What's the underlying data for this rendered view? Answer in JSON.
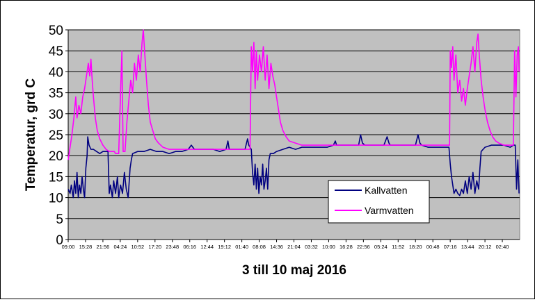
{
  "chart_data": {
    "type": "line",
    "title": "",
    "xlabel": "3 till 10 maj 2016",
    "ylabel": "Temperatur, grd C",
    "ylim": [
      0,
      50
    ],
    "yticks": [
      0,
      5,
      10,
      15,
      20,
      25,
      30,
      35,
      40,
      45,
      50
    ],
    "grid": true,
    "legend_position": "lower-right",
    "x_tick_labels": [
      "09:00",
      "15:28",
      "21:56",
      "04:24",
      "10:52",
      "17:20",
      "23:48",
      "06:16",
      "12:44",
      "19:12",
      "01:40",
      "08:08",
      "14:36",
      "21:04",
      "03:32",
      "10:00",
      "16:28",
      "22:56",
      "05:24",
      "11:52",
      "18:20",
      "00:48",
      "07:16",
      "13:44",
      "20:12",
      "02:40"
    ],
    "colors": {
      "plot_background": "#c0c0c0",
      "kallvatten": "#000080",
      "varmvatten": "#ff00ff"
    },
    "series": [
      {
        "name": "Kallvatten",
        "color": "#000080",
        "points": [
          [
            0,
            12
          ],
          [
            0.3,
            11
          ],
          [
            0.5,
            13
          ],
          [
            0.8,
            10
          ],
          [
            1.0,
            14
          ],
          [
            1.2,
            11
          ],
          [
            1.4,
            16
          ],
          [
            1.6,
            10
          ],
          [
            1.8,
            13
          ],
          [
            2.0,
            11
          ],
          [
            2.2,
            15
          ],
          [
            2.4,
            12
          ],
          [
            2.6,
            10
          ],
          [
            2.8,
            17
          ],
          [
            3.0,
            20
          ],
          [
            3.1,
            24.5
          ],
          [
            3.3,
            22.5
          ],
          [
            3.6,
            21.5
          ],
          [
            4.0,
            21.5
          ],
          [
            4.5,
            21
          ],
          [
            5.0,
            20.5
          ],
          [
            5.5,
            21
          ],
          [
            6.0,
            21
          ],
          [
            6.3,
            21
          ],
          [
            6.5,
            11
          ],
          [
            6.7,
            13
          ],
          [
            7.0,
            10
          ],
          [
            7.2,
            14
          ],
          [
            7.5,
            11
          ],
          [
            7.8,
            15
          ],
          [
            8.0,
            10
          ],
          [
            8.3,
            13
          ],
          [
            8.6,
            11
          ],
          [
            8.9,
            16
          ],
          [
            9.2,
            12
          ],
          [
            9.5,
            10
          ],
          [
            9.8,
            17
          ],
          [
            10.0,
            19
          ],
          [
            10.2,
            20.5
          ],
          [
            11,
            21
          ],
          [
            12,
            21
          ],
          [
            13,
            21.5
          ],
          [
            14,
            21
          ],
          [
            15,
            21
          ],
          [
            16,
            20.5
          ],
          [
            17,
            21
          ],
          [
            18,
            21
          ],
          [
            19,
            21.5
          ],
          [
            19.5,
            22.5
          ],
          [
            20,
            21.5
          ],
          [
            21,
            21.5
          ],
          [
            22,
            21.5
          ],
          [
            23,
            21.5
          ],
          [
            24,
            21
          ],
          [
            25,
            21.5
          ],
          [
            25.3,
            23.5
          ],
          [
            25.5,
            21.5
          ],
          [
            26,
            21.5
          ],
          [
            27,
            21.5
          ],
          [
            28,
            21.5
          ],
          [
            28.4,
            24
          ],
          [
            28.6,
            22.5
          ],
          [
            29,
            21.5
          ],
          [
            29.2,
            16
          ],
          [
            29.4,
            13
          ],
          [
            29.6,
            18
          ],
          [
            29.8,
            12
          ],
          [
            30,
            17
          ],
          [
            30.2,
            11
          ],
          [
            30.4,
            15
          ],
          [
            30.6,
            13
          ],
          [
            30.8,
            18
          ],
          [
            31,
            12
          ],
          [
            31.2,
            14
          ],
          [
            31.4,
            17
          ],
          [
            31.6,
            12
          ],
          [
            31.8,
            19
          ],
          [
            32,
            20.5
          ],
          [
            32.5,
            20.5
          ],
          [
            33,
            21
          ],
          [
            34,
            21.5
          ],
          [
            35,
            22
          ],
          [
            36,
            21.5
          ],
          [
            37,
            22
          ],
          [
            38,
            22
          ],
          [
            39,
            22
          ],
          [
            40,
            22
          ],
          [
            41,
            22
          ],
          [
            42,
            22.5
          ],
          [
            42.3,
            23.5
          ],
          [
            42.5,
            22.5
          ],
          [
            43,
            22.5
          ],
          [
            44,
            22.5
          ],
          [
            45,
            22.5
          ],
          [
            46,
            22.5
          ],
          [
            46.3,
            25
          ],
          [
            46.6,
            23
          ],
          [
            47,
            22.5
          ],
          [
            48,
            22.5
          ],
          [
            49,
            22.5
          ],
          [
            50,
            22.5
          ],
          [
            50.5,
            24.5
          ],
          [
            50.8,
            23
          ],
          [
            51,
            22.5
          ],
          [
            52,
            22.5
          ],
          [
            53,
            22.5
          ],
          [
            54,
            22.5
          ],
          [
            55,
            22.5
          ],
          [
            55.4,
            25
          ],
          [
            55.7,
            23
          ],
          [
            56,
            22.5
          ],
          [
            57,
            22
          ],
          [
            58,
            22
          ],
          [
            59,
            22
          ],
          [
            60,
            22
          ],
          [
            60.3,
            22
          ],
          [
            60.5,
            18
          ],
          [
            60.7,
            15
          ],
          [
            60.9,
            13
          ],
          [
            61.1,
            11
          ],
          [
            61.4,
            12
          ],
          [
            61.7,
            11
          ],
          [
            62,
            10.5
          ],
          [
            62.3,
            12
          ],
          [
            62.6,
            11
          ],
          [
            62.9,
            14
          ],
          [
            63.2,
            11
          ],
          [
            63.5,
            15
          ],
          [
            63.8,
            12
          ],
          [
            64.1,
            16
          ],
          [
            64.4,
            11
          ],
          [
            64.7,
            14
          ],
          [
            65,
            12
          ],
          [
            65.2,
            17
          ],
          [
            65.4,
            21
          ],
          [
            66,
            22
          ],
          [
            67,
            22.5
          ],
          [
            68,
            22.5
          ],
          [
            69,
            22.5
          ],
          [
            70,
            22
          ],
          [
            70.5,
            22.5
          ],
          [
            70.8,
            22.5
          ],
          [
            71,
            12
          ],
          [
            71.2,
            19
          ],
          [
            71.4,
            11
          ]
        ]
      },
      {
        "name": "Varmvatten",
        "color": "#ff00ff",
        "points": [
          [
            0,
            19
          ],
          [
            0.3,
            22
          ],
          [
            0.6,
            25
          ],
          [
            0.9,
            29
          ],
          [
            1.2,
            34
          ],
          [
            1.4,
            29
          ],
          [
            1.7,
            32
          ],
          [
            2.0,
            30
          ],
          [
            2.3,
            34
          ],
          [
            2.6,
            36
          ],
          [
            2.8,
            38
          ],
          [
            3.0,
            40
          ],
          [
            3.2,
            42
          ],
          [
            3.4,
            39
          ],
          [
            3.6,
            43
          ],
          [
            3.8,
            38
          ],
          [
            4.0,
            34
          ],
          [
            4.3,
            29
          ],
          [
            4.6,
            26
          ],
          [
            5.0,
            24
          ],
          [
            5.5,
            22.5
          ],
          [
            6.0,
            21.5
          ],
          [
            6.5,
            21
          ],
          [
            7.0,
            21
          ],
          [
            7.3,
            21
          ],
          [
            7.5,
            20.5
          ],
          [
            8.0,
            20.5
          ],
          [
            8.3,
            35
          ],
          [
            8.5,
            45
          ],
          [
            8.7,
            21
          ],
          [
            9.0,
            21
          ],
          [
            9.3,
            28
          ],
          [
            9.6,
            33
          ],
          [
            9.9,
            38
          ],
          [
            10.2,
            35
          ],
          [
            10.5,
            42
          ],
          [
            10.8,
            38
          ],
          [
            11.1,
            44
          ],
          [
            11.4,
            40
          ],
          [
            11.7,
            47
          ],
          [
            11.9,
            50
          ],
          [
            12.1,
            45
          ],
          [
            12.4,
            38
          ],
          [
            12.7,
            32
          ],
          [
            13.0,
            28
          ],
          [
            13.4,
            26
          ],
          [
            13.8,
            24
          ],
          [
            14.3,
            23
          ],
          [
            15,
            22
          ],
          [
            16,
            21.5
          ],
          [
            17,
            21.5
          ],
          [
            18,
            21.5
          ],
          [
            19,
            21.5
          ],
          [
            20,
            21.5
          ],
          [
            21,
            21.5
          ],
          [
            22,
            21.5
          ],
          [
            23,
            21.5
          ],
          [
            24,
            21.5
          ],
          [
            25,
            21.5
          ],
          [
            26,
            21.5
          ],
          [
            27,
            21.5
          ],
          [
            28,
            21.5
          ],
          [
            28.8,
            21.5
          ],
          [
            29.0,
            46
          ],
          [
            29.2,
            40
          ],
          [
            29.4,
            47
          ],
          [
            29.6,
            36
          ],
          [
            29.8,
            45
          ],
          [
            30,
            38
          ],
          [
            30.3,
            44
          ],
          [
            30.6,
            40
          ],
          [
            30.9,
            46
          ],
          [
            31.2,
            38
          ],
          [
            31.5,
            44
          ],
          [
            31.8,
            36
          ],
          [
            32.1,
            42
          ],
          [
            32.4,
            39
          ],
          [
            32.7,
            37
          ],
          [
            33.0,
            34
          ],
          [
            33.3,
            31
          ],
          [
            33.6,
            28
          ],
          [
            34.0,
            26
          ],
          [
            34.5,
            24.5
          ],
          [
            35,
            23.5
          ],
          [
            36,
            23
          ],
          [
            37,
            22.5
          ],
          [
            38,
            22.5
          ],
          [
            40,
            22.5
          ],
          [
            42,
            22.5
          ],
          [
            44,
            22.5
          ],
          [
            46,
            22.5
          ],
          [
            48,
            22.5
          ],
          [
            50,
            22.5
          ],
          [
            52,
            22.5
          ],
          [
            54,
            22.5
          ],
          [
            56,
            22.5
          ],
          [
            57,
            22.5
          ],
          [
            58,
            22.5
          ],
          [
            59,
            22.5
          ],
          [
            60,
            22.5
          ],
          [
            60.4,
            22.5
          ],
          [
            60.5,
            45
          ],
          [
            60.7,
            41
          ],
          [
            60.9,
            46
          ],
          [
            61.1,
            38
          ],
          [
            61.4,
            44
          ],
          [
            61.7,
            35
          ],
          [
            62,
            38
          ],
          [
            62.3,
            33
          ],
          [
            62.6,
            36
          ],
          [
            62.9,
            32
          ],
          [
            63.2,
            36
          ],
          [
            63.5,
            39
          ],
          [
            63.8,
            42
          ],
          [
            64.1,
            46
          ],
          [
            64.4,
            40
          ],
          [
            64.7,
            47
          ],
          [
            64.9,
            49
          ],
          [
            65.1,
            44
          ],
          [
            65.4,
            38
          ],
          [
            65.7,
            34
          ],
          [
            66,
            31
          ],
          [
            66.4,
            28
          ],
          [
            66.8,
            26
          ],
          [
            67.2,
            24.5
          ],
          [
            67.7,
            23.5
          ],
          [
            68.2,
            23
          ],
          [
            69,
            22.5
          ],
          [
            70,
            22.5
          ],
          [
            70.5,
            22.5
          ],
          [
            70.7,
            45
          ],
          [
            70.9,
            34
          ],
          [
            71.1,
            44
          ],
          [
            71.3,
            46
          ],
          [
            71.4,
            40
          ]
        ]
      }
    ]
  }
}
